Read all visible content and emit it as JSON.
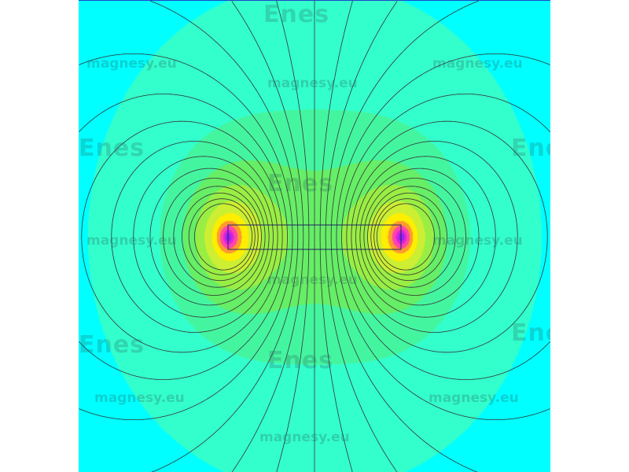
{
  "plot": {
    "type": "magnetic field map",
    "colors": [
      "#00ffff",
      "#33ffcc",
      "#44f5a0",
      "#66ee66",
      "#99ee44",
      "#ccee33",
      "#ffee00",
      "#ff9a30",
      "#ff44aa",
      "#dd22dd",
      "#9922ee"
    ],
    "line_color": "#333333",
    "conductor_color": "#222266"
  },
  "watermark": {
    "text": "magnesy.eu",
    "logo": "Enes"
  }
}
